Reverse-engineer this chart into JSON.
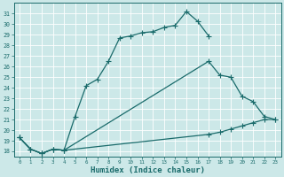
{
  "title": "",
  "xlabel": "Humidex (Indice chaleur)",
  "ylabel": "",
  "bg_color": "#cce8e8",
  "grid_color": "#b0d8d8",
  "line_color": "#1a6b6b",
  "xlim": [
    -0.5,
    23.5
  ],
  "ylim": [
    17.5,
    32.0
  ],
  "xticks": [
    0,
    1,
    2,
    3,
    4,
    5,
    6,
    7,
    8,
    9,
    10,
    11,
    12,
    13,
    14,
    15,
    16,
    17,
    18,
    19,
    20,
    21,
    22,
    23
  ],
  "yticks": [
    18,
    19,
    20,
    21,
    22,
    23,
    24,
    25,
    26,
    27,
    28,
    29,
    30,
    31
  ],
  "curve1_x": [
    0,
    1,
    2,
    3,
    4,
    5,
    6,
    7,
    8,
    9,
    10,
    11,
    12,
    13,
    14,
    15,
    16,
    17
  ],
  "curve1_y": [
    19.3,
    18.2,
    17.8,
    18.2,
    18.1,
    21.3,
    24.2,
    24.8,
    26.5,
    28.7,
    28.9,
    29.2,
    29.3,
    29.7,
    29.9,
    31.2,
    30.3,
    28.9
  ],
  "curve2_x": [
    0,
    1,
    2,
    3,
    4,
    17,
    18,
    19,
    20,
    21,
    22,
    23
  ],
  "curve2_y": [
    19.3,
    18.2,
    17.8,
    18.2,
    18.1,
    26.5,
    25.2,
    25.0,
    23.2,
    22.7,
    21.3,
    21.0
  ],
  "curve3_x": [
    0,
    1,
    2,
    3,
    4,
    17,
    18,
    19,
    20,
    21,
    22,
    23
  ],
  "curve3_y": [
    19.3,
    18.2,
    17.8,
    18.2,
    18.1,
    19.6,
    19.8,
    20.1,
    20.4,
    20.7,
    21.0,
    21.0
  ]
}
